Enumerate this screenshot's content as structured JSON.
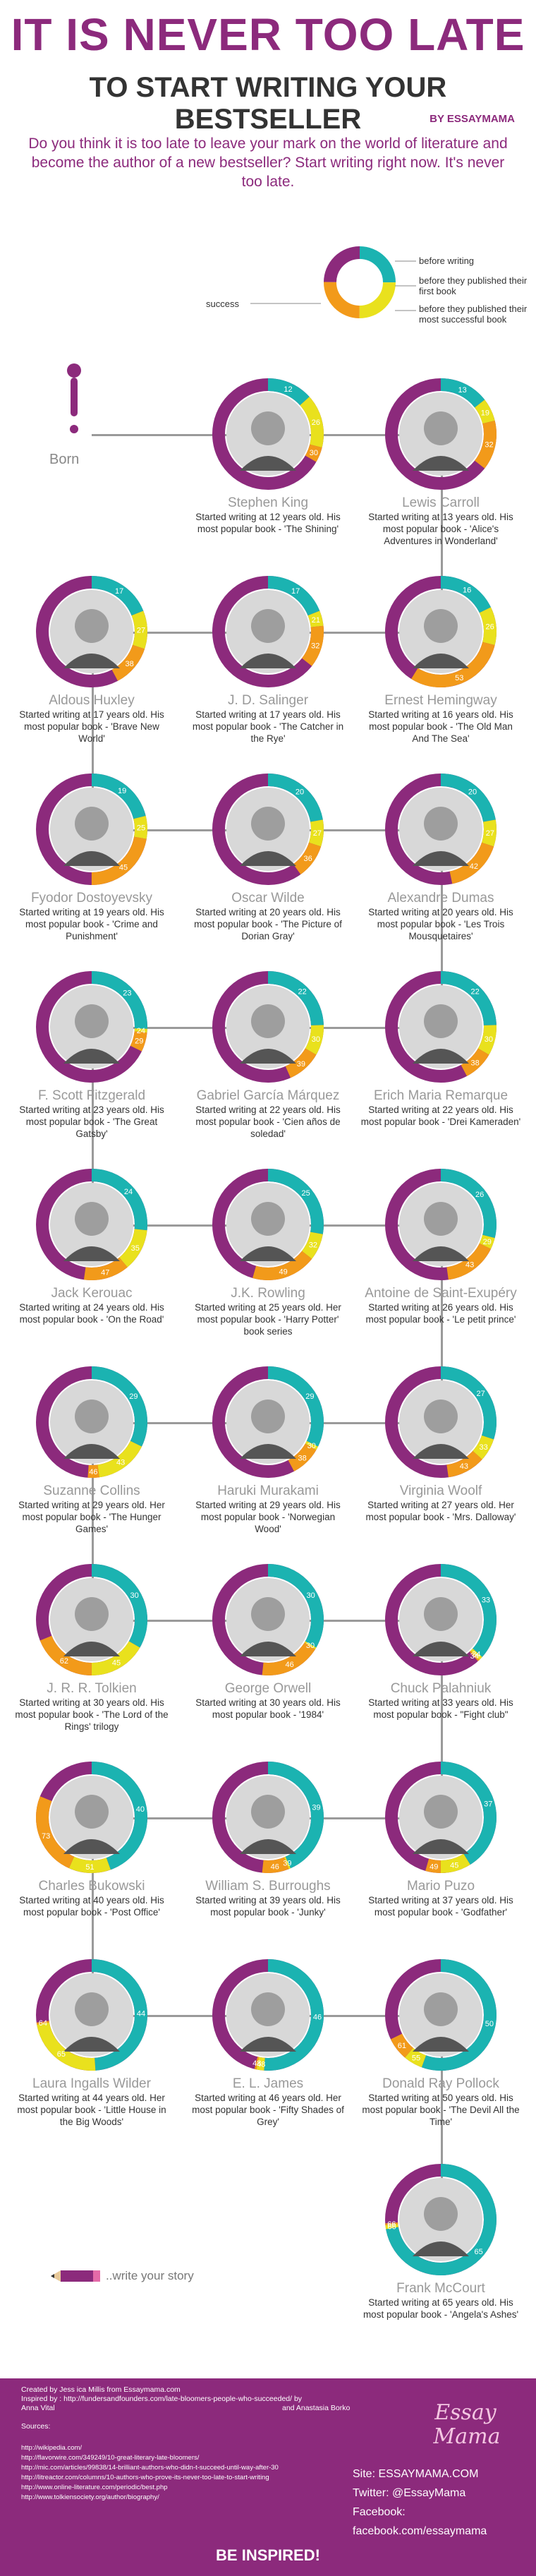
{
  "header": {
    "title_line1": "IT IS NEVER TOO LATE",
    "title_line2": "TO START WRITING YOUR BESTSELLER",
    "byline": "BY ESSAYMAMA",
    "intro": "Do you think it is too late to leave your mark on the world of literature and become the author of a new bestseller? Start writing right now. It's never too late."
  },
  "legend": {
    "success": "success",
    "before_writing": "before writing",
    "before_first_book": "before they published their first book",
    "before_successful_book": "before they published their most successful book"
  },
  "colors": {
    "teal": "#1bb3b1",
    "yellow": "#e9e11d",
    "orange": "#f29a1a",
    "purple": "#8c2a7c",
    "grey": "#bdbdbd"
  },
  "born_label": "Born",
  "write_story": "..write your story",
  "authors": [
    {
      "name": "Stephen King",
      "desc": "Started writing at 12 years old. His most popular book - 'The Shining'",
      "values": [
        12,
        26,
        30
      ]
    },
    {
      "name": "Lewis Carroll",
      "desc": "Started writing at 13 years old. His most popular book - 'Alice's Adventures in Wonderland'",
      "values": [
        13,
        19,
        32
      ]
    },
    {
      "name": "Aldous Huxley",
      "desc": "Started writing at 17 years old. His most popular book - 'Brave New World'",
      "values": [
        17,
        27,
        38
      ]
    },
    {
      "name": "J. D. Salinger",
      "desc": "Started writing at 17 years old. His most popular book - 'The Catcher in the Rye'",
      "values": [
        17,
        21,
        32
      ]
    },
    {
      "name": "Ernest Hemingway",
      "desc": "Started writing at 16 years old. His most popular book - 'The Old Man And The Sea'",
      "values": [
        16,
        26,
        53
      ]
    },
    {
      "name": "Fyodor Dostoyevsky",
      "desc": "Started writing at 19 years old. His most popular book - 'Crime and Punishment'",
      "values": [
        19,
        25,
        45
      ]
    },
    {
      "name": "Oscar Wilde",
      "desc": "Started writing at 20 years old. His most popular book - 'The Picture of Dorian Gray'",
      "values": [
        20,
        27,
        36
      ]
    },
    {
      "name": "Alexandre Dumas",
      "desc": "Started writing at 20 years old. His most popular book - 'Les Trois Mousquetaires'",
      "values": [
        20,
        27,
        42
      ]
    },
    {
      "name": "F. Scott Fitzgerald",
      "desc": "Started writing at 23 years old. His most popular book - 'The Great Gatsby'",
      "values": [
        23,
        24,
        29
      ]
    },
    {
      "name": "Gabriel García Márquez",
      "desc": "Started writing at 22 years old. His most popular book - 'Cien años de soledad'",
      "values": [
        22,
        30,
        39
      ]
    },
    {
      "name": "Erich Maria Remarque",
      "desc": "Started writing at 22 years old. His most popular book - 'Drei Kameraden'",
      "values": [
        22,
        30,
        38
      ]
    },
    {
      "name": "Jack Kerouac",
      "desc": "Started writing at 24 years old. His most popular book - 'On the Road'",
      "values": [
        24,
        35,
        47
      ]
    },
    {
      "name": "J.K. Rowling",
      "desc": "Started writing at 25 years old. Her most popular book - 'Harry Potter' book series",
      "values": [
        25,
        32,
        49
      ]
    },
    {
      "name": "Antoine de Saint-Exupéry",
      "desc": "Started writing at 26 years old. His most popular book - 'Le petit prince'",
      "values": [
        26,
        29,
        43
      ]
    },
    {
      "name": "Suzanne Collins",
      "desc": "Started writing at 29 years old. Her most popular book - 'The Hunger Games'",
      "values": [
        29,
        43,
        46
      ]
    },
    {
      "name": "Haruki Murakami",
      "desc": "Started writing at 29 years old. His most popular book - 'Norwegian Wood'",
      "values": [
        29,
        30,
        38
      ]
    },
    {
      "name": "Virginia Woolf",
      "desc": "Started writing at 27 years old. Her most popular book - 'Mrs. Dalloway'",
      "values": [
        27,
        33,
        43
      ]
    },
    {
      "name": "J. R. R. Tolkien",
      "desc": "Started writing at 30 years old. His most popular book - 'The Lord of the Rings' trilogy",
      "values": [
        30,
        45,
        62
      ]
    },
    {
      "name": "George Orwell",
      "desc": "Started writing at 30 years old. His most popular book - '1984'",
      "values": [
        30,
        30,
        46
      ]
    },
    {
      "name": "Chuck Palahniuk",
      "desc": "Started writing at 33 years old. His most popular book - \"Fight club\"",
      "values": [
        33,
        34,
        34
      ]
    },
    {
      "name": "Charles Bukowski",
      "desc": "Started writing at 40 years old. His most popular book - 'Post Office'",
      "values": [
        40,
        51,
        73
      ]
    },
    {
      "name": "William S. Burroughs",
      "desc": "Started writing at 39 years old. His most popular book - 'Junky'",
      "values": [
        39,
        39,
        46
      ]
    },
    {
      "name": "Mario Puzo",
      "desc": "Started writing at 37 years old. His most popular book - 'Godfather'",
      "values": [
        37,
        45,
        49
      ]
    },
    {
      "name": "Laura Ingalls Wilder",
      "desc": "Started writing at 44 years old. Her most popular book - 'Little House in the Big Woods'",
      "values": [
        44,
        65,
        64
      ]
    },
    {
      "name": "E. L. James",
      "desc": "Started writing at 46 years old. Her most popular book - 'Fifty Shades of Grey'",
      "values": [
        46,
        48,
        48
      ]
    },
    {
      "name": "Donald Ray Pollock",
      "desc": "Started writing at 50 years old. His most popular book - 'The Devil All the Time'",
      "values": [
        50,
        55,
        61
      ]
    },
    {
      "name": "Frank McCourt",
      "desc": "Started writing at 65 years old. His most popular book - 'Angela's Ashes'",
      "values": [
        65,
        66,
        66
      ]
    }
  ],
  "footer": {
    "created_by": "Created by Jess ica Millis from Essaymama.com",
    "inspired_by": "Inspired by : http://fundersandfounders.com/late-bloomers-people-who-succeeded/ by Anna Vital",
    "inspired_by2": "and Anastasia Borko",
    "sources_heading": "Sources:",
    "sources": [
      "http://wikipedia.com/",
      "http://flavorwire.com/349249/10-great-literary-late-bloomers/",
      "http://mic.com/articles/99838/14-brilliant-authors-who-didn-t-succeed-until-way-after-30",
      "http://litreactor.com/columns/10-authors-who-prove-its-never-too-late-to-start-writing",
      "http://www.online-literature.com/periodic/best.php",
      "http://www.tolkiensociety.org/author/biography/"
    ],
    "logo_line1": "Essay",
    "logo_line2": "Mama",
    "site": "Site: ESSAYMAMA.COM",
    "twitter": "Twitter: @EssayMama",
    "facebook": "Facebook: facebook.com/essaymama",
    "inspired": "BE INSPIRED!"
  }
}
